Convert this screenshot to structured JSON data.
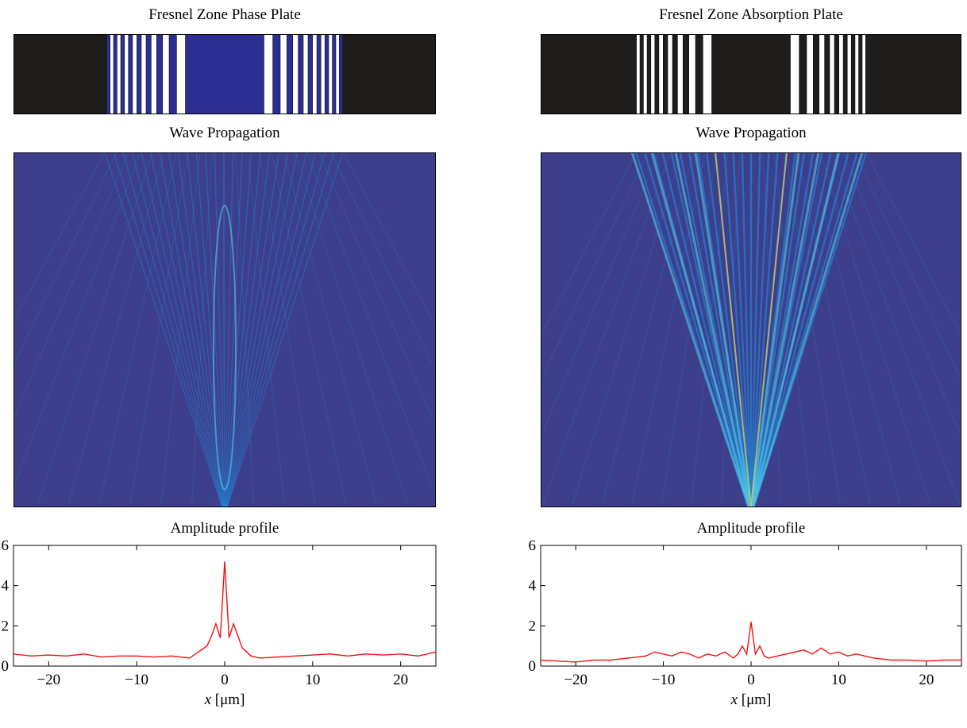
{
  "colors": {
    "plate_background": "#1e1d1c",
    "plate_phase_fill": "#2b2f92",
    "plate_zone_white": "#ffffff",
    "wave_background": "#3d3f8c",
    "wave_beam": "#1e8fe0",
    "wave_beam_bright": "#5fe0f0",
    "wave_hot": "#ffe14a",
    "wave_focus": "#d63a1a",
    "profile_line": "#ee1111"
  },
  "left": {
    "plate_title": "Fresnel Zone Phase Plate",
    "wave_title": "Wave Propagation",
    "profile_title": "Amplitude profile"
  },
  "right": {
    "plate_title": "Fresnel Zone Absorption Plate",
    "wave_title": "Wave Propagation",
    "profile_title": "Amplitude profile"
  },
  "chart_data": [
    {
      "type": "line",
      "title": "Amplitude profile",
      "xlabel": "x [μm]",
      "ylabel": "",
      "xlim": [
        -24,
        24
      ],
      "ylim": [
        0,
        6
      ],
      "xticks": [
        "-20",
        "-10",
        "0",
        "10",
        "20"
      ],
      "yticks": [
        "0",
        "2",
        "4",
        "6"
      ],
      "grid": false,
      "series": [
        {
          "x": [
            -24,
            -22,
            -20,
            -18,
            -16,
            -14,
            -12,
            -10,
            -8,
            -6,
            -4,
            -3,
            -2,
            -1.5,
            -1,
            -0.5,
            0,
            0.5,
            1,
            1.5,
            2,
            3,
            4,
            6,
            8,
            10,
            12,
            14,
            16,
            18,
            20,
            22,
            24
          ],
          "y": [
            0.6,
            0.5,
            0.55,
            0.5,
            0.6,
            0.45,
            0.5,
            0.5,
            0.45,
            0.5,
            0.4,
            0.7,
            1.0,
            1.5,
            2.1,
            1.4,
            5.2,
            1.4,
            2.1,
            1.5,
            0.9,
            0.5,
            0.4,
            0.45,
            0.5,
            0.55,
            0.6,
            0.5,
            0.6,
            0.55,
            0.6,
            0.5,
            0.7
          ]
        }
      ]
    },
    {
      "type": "line",
      "title": "Amplitude profile",
      "xlabel": "x [μm]",
      "ylabel": "",
      "xlim": [
        -24,
        24
      ],
      "ylim": [
        0,
        6
      ],
      "xticks": [
        "-20",
        "-10",
        "0",
        "10",
        "20"
      ],
      "yticks": [
        "0",
        "2",
        "4",
        "6"
      ],
      "grid": false,
      "series": [
        {
          "x": [
            -24,
            -22,
            -20,
            -18,
            -16,
            -14,
            -12,
            -11,
            -10,
            -9,
            -8,
            -7,
            -6,
            -5,
            -4,
            -3,
            -2,
            -1.5,
            -1,
            -0.5,
            0,
            0.5,
            1,
            1.5,
            2,
            3,
            4,
            5,
            6,
            7,
            8,
            9,
            10,
            11,
            12,
            14,
            16,
            18,
            20,
            22,
            24
          ],
          "y": [
            0.3,
            0.25,
            0.2,
            0.3,
            0.3,
            0.4,
            0.5,
            0.7,
            0.6,
            0.5,
            0.7,
            0.6,
            0.4,
            0.6,
            0.5,
            0.7,
            0.4,
            0.6,
            1.0,
            0.6,
            2.2,
            0.6,
            1.0,
            0.5,
            0.4,
            0.5,
            0.6,
            0.7,
            0.8,
            0.6,
            0.9,
            0.6,
            0.7,
            0.5,
            0.6,
            0.4,
            0.3,
            0.3,
            0.25,
            0.3,
            0.3
          ]
        }
      ]
    }
  ]
}
